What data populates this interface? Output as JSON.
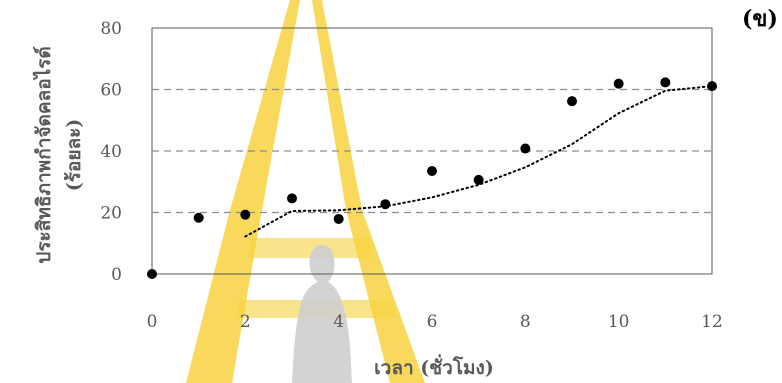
{
  "chart_data": {
    "type": "scatter",
    "panel_label": "(ข)",
    "xlabel": "เวลา (ชั่วโมง)",
    "ylabel": "ประสิทธิภาพกำจัดคลอไรด์",
    "ylabel_unit": "(ร้อยละ)",
    "xlim": [
      0,
      12
    ],
    "ylim": [
      0,
      80
    ],
    "x_ticks": [
      0,
      2,
      4,
      6,
      8,
      10,
      12
    ],
    "y_ticks": [
      0,
      20,
      40,
      60,
      80
    ],
    "grid": "horizontal dashed",
    "legend": "none",
    "series": [
      {
        "points": [
          {
            "x": 0,
            "y": 0
          },
          {
            "x": 1,
            "y": 18.3
          },
          {
            "x": 2,
            "y": 19.3
          },
          {
            "x": 3,
            "y": 24.6
          },
          {
            "x": 4,
            "y": 17.9
          },
          {
            "x": 5,
            "y": 22.7
          },
          {
            "x": 6,
            "y": 33.5
          },
          {
            "x": 7,
            "y": 30.6
          },
          {
            "x": 8,
            "y": 40.8
          },
          {
            "x": 9,
            "y": 56.2
          },
          {
            "x": 10,
            "y": 61.9
          },
          {
            "x": 11,
            "y": 62.3
          },
          {
            "x": 12,
            "y": 61.1
          }
        ],
        "color": "#000000"
      }
    ],
    "trendline": {
      "style": "dotted",
      "color": "#000000",
      "points": [
        {
          "x": 2,
          "y": 12.2
        },
        {
          "x": 3,
          "y": 20.5
        },
        {
          "x": 4,
          "y": 20.7
        },
        {
          "x": 5,
          "y": 22.0
        },
        {
          "x": 6,
          "y": 24.9
        },
        {
          "x": 7,
          "y": 29.0
        },
        {
          "x": 8,
          "y": 34.7
        },
        {
          "x": 9,
          "y": 42.2
        },
        {
          "x": 10,
          "y": 52.3
        },
        {
          "x": 11,
          "y": 59.6
        },
        {
          "x": 12,
          "y": 61.1
        }
      ]
    },
    "colors": {
      "axis": "#595959",
      "gridline": "#8c8c8c",
      "watermark": "#f0c000",
      "figure": "#bfbfbf"
    }
  }
}
